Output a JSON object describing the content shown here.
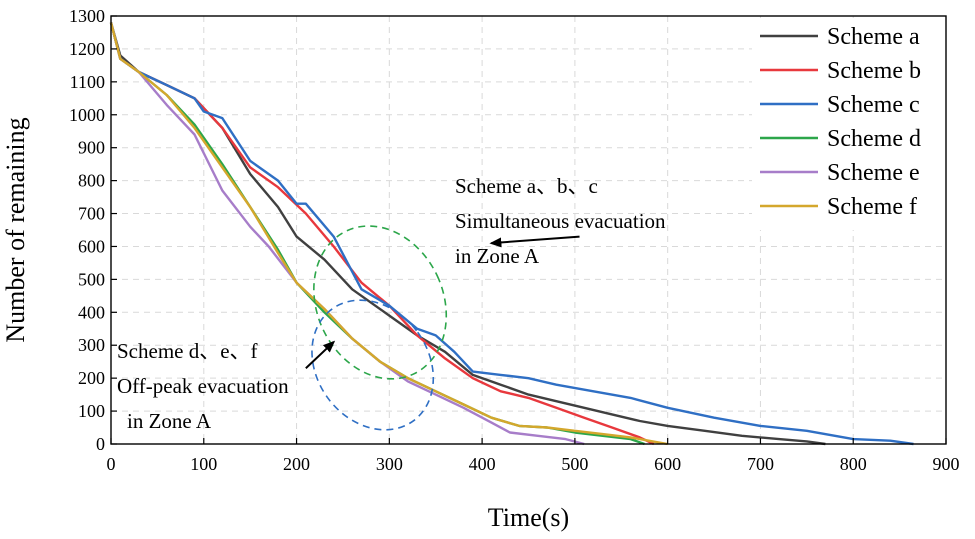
{
  "chart_data": {
    "type": "line",
    "title": "",
    "xlabel": "Time(s)",
    "ylabel": "Number of remaining",
    "xlim": [
      0,
      900
    ],
    "ylim": [
      0,
      1300
    ],
    "xticks": [
      0,
      100,
      200,
      300,
      400,
      500,
      600,
      700,
      800,
      900
    ],
    "yticks": [
      0,
      100,
      200,
      300,
      400,
      500,
      600,
      700,
      800,
      900,
      1000,
      1100,
      1200,
      1300
    ],
    "grid": true,
    "legend_position": "top-right",
    "series": [
      {
        "name": "Scheme a",
        "prefix": "Scheme",
        "letter": "a",
        "color": "#404040",
        "x": [
          0,
          10,
          30,
          60,
          90,
          120,
          150,
          180,
          200,
          230,
          260,
          300,
          330,
          360,
          390,
          420,
          450,
          480,
          510,
          540,
          570,
          600,
          640,
          680,
          720,
          750,
          770
        ],
        "y": [
          1280,
          1180,
          1130,
          1090,
          1050,
          960,
          820,
          720,
          630,
          560,
          470,
          390,
          330,
          280,
          210,
          180,
          150,
          130,
          110,
          90,
          70,
          55,
          40,
          25,
          15,
          8,
          0
        ]
      },
      {
        "name": "Scheme b",
        "prefix": "Scheme",
        "letter": "b",
        "color": "#e8383d",
        "x": [
          0,
          10,
          30,
          60,
          90,
          120,
          150,
          180,
          210,
          240,
          270,
          300,
          330,
          360,
          390,
          420,
          450,
          480,
          510,
          540,
          570,
          585
        ],
        "y": [
          1280,
          1170,
          1130,
          1090,
          1050,
          960,
          840,
          780,
          700,
          600,
          490,
          420,
          330,
          260,
          200,
          160,
          140,
          110,
          80,
          50,
          20,
          0
        ]
      },
      {
        "name": "Scheme c",
        "prefix": "Scheme",
        "letter": "c",
        "color": "#2f6fc4",
        "x": [
          0,
          10,
          30,
          60,
          90,
          100,
          120,
          150,
          180,
          200,
          210,
          240,
          270,
          300,
          330,
          350,
          370,
          390,
          420,
          450,
          480,
          520,
          560,
          600,
          650,
          700,
          750,
          800,
          840,
          865
        ],
        "y": [
          1280,
          1170,
          1130,
          1090,
          1050,
          1010,
          990,
          860,
          800,
          730,
          730,
          630,
          470,
          420,
          350,
          330,
          280,
          220,
          210,
          200,
          180,
          160,
          140,
          110,
          80,
          55,
          40,
          15,
          10,
          0
        ]
      },
      {
        "name": "Scheme d",
        "prefix": "Scheme",
        "letter": "d",
        "color": "#2ca64a",
        "x": [
          0,
          10,
          30,
          60,
          90,
          120,
          150,
          180,
          200,
          230,
          260,
          290,
          320,
          350,
          380,
          410,
          440,
          470,
          500,
          530,
          560,
          575
        ],
        "y": [
          1280,
          1170,
          1130,
          1060,
          970,
          850,
          720,
          590,
          490,
          400,
          320,
          250,
          200,
          160,
          120,
          80,
          55,
          50,
          35,
          25,
          15,
          0
        ]
      },
      {
        "name": "Scheme e",
        "prefix": "Scheme",
        "letter": "e",
        "color": "#a77dc9",
        "x": [
          0,
          10,
          30,
          60,
          90,
          120,
          150,
          170,
          200,
          230,
          260,
          290,
          320,
          350,
          380,
          410,
          430,
          460,
          490,
          510
        ],
        "y": [
          1280,
          1170,
          1130,
          1030,
          940,
          770,
          660,
          600,
          490,
          410,
          320,
          250,
          190,
          150,
          110,
          65,
          35,
          25,
          15,
          0
        ]
      },
      {
        "name": "Scheme f",
        "prefix": "Scheme",
        "letter": "f",
        "color": "#d4a72c",
        "x": [
          0,
          10,
          30,
          60,
          90,
          120,
          150,
          180,
          200,
          230,
          260,
          290,
          320,
          350,
          380,
          410,
          440,
          470,
          500,
          530,
          560,
          590,
          600
        ],
        "y": [
          1280,
          1170,
          1130,
          1060,
          960,
          840,
          720,
          580,
          490,
          410,
          320,
          250,
          200,
          160,
          120,
          80,
          55,
          50,
          40,
          30,
          20,
          5,
          0
        ]
      }
    ],
    "annotations": [
      {
        "lines": [
          "Scheme a、b、c",
          "Simultaneous evacuation",
          "in Zone A"
        ],
        "color": "#2ca64a",
        "ellipse_center": [
          290,
          430
        ],
        "ellipse_rx": 68,
        "ellipse_ry": 240,
        "arrow_from": [
          505,
          630
        ],
        "arrow_to": [
          410,
          610
        ]
      },
      {
        "lines": [
          "Scheme d、e、f",
          "Off-peak evacuation",
          "in Zone A"
        ],
        "color": "#2f6fc4",
        "ellipse_center": [
          282,
          240
        ],
        "ellipse_rx": 60,
        "ellipse_ry": 210,
        "arrow_from": [
          210,
          230
        ],
        "arrow_to": [
          240,
          310
        ]
      }
    ]
  }
}
